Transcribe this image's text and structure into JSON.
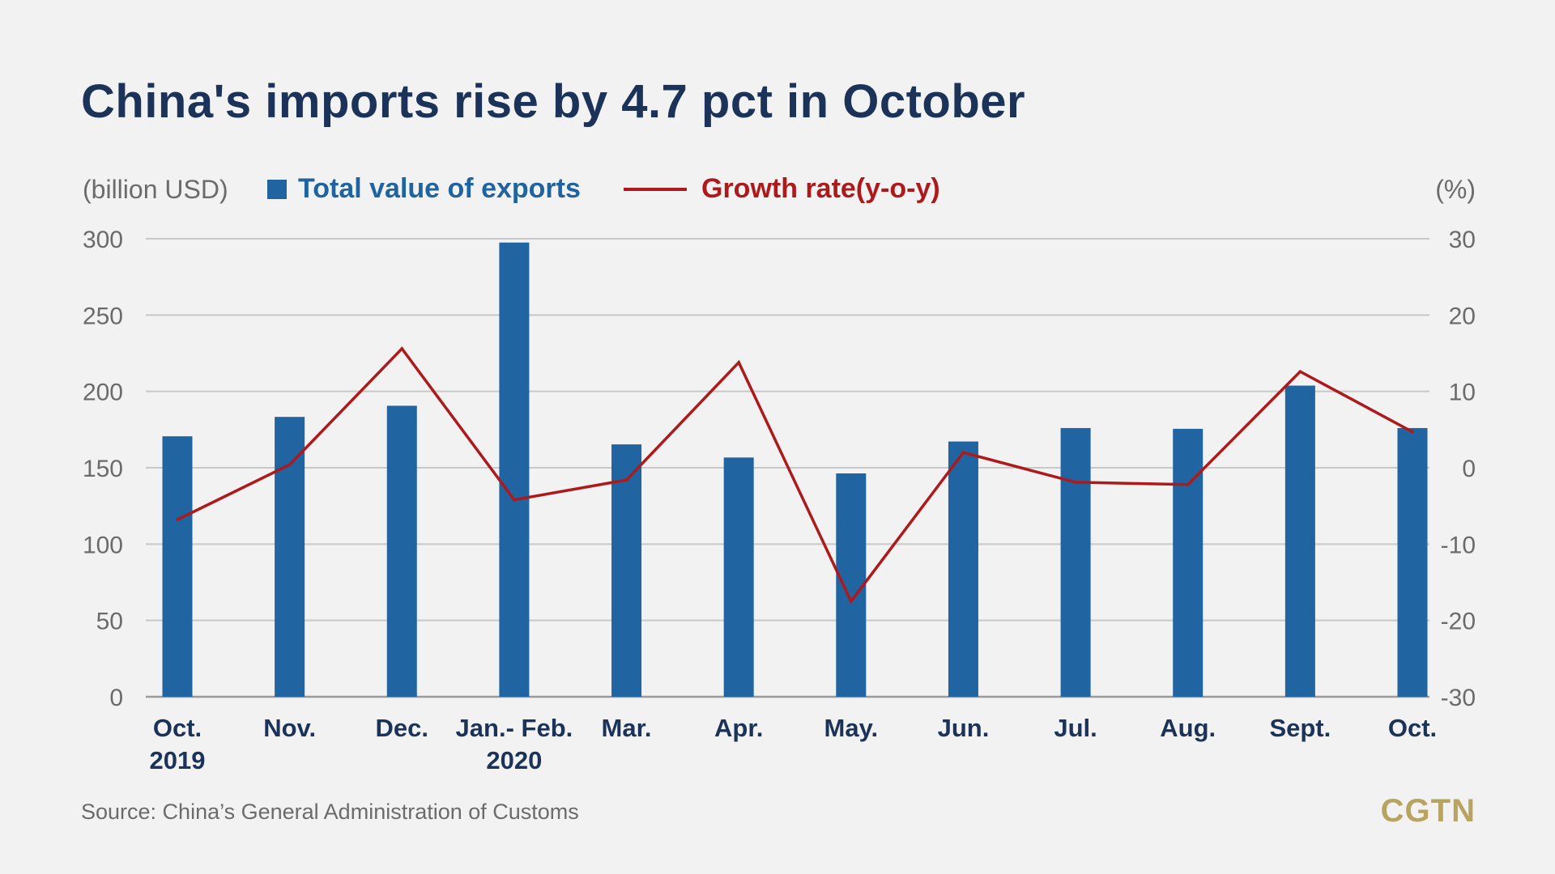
{
  "title": "China's imports rise by 4.7 pct in October",
  "source": "Source: China’s General Administration of Customs",
  "brand": "CGTN",
  "colors": {
    "background": "#f2f2f2",
    "bar": "#2064a1",
    "line": "#ad1a1c",
    "title": "#1b3358",
    "grid": "#c8c8c8",
    "brand": "#b9a45f"
  },
  "chart_data": {
    "type": "bar",
    "title": "China's imports rise by 4.7 pct in October",
    "ylabel_left": "(billion USD)",
    "ylabel_right": "(%)",
    "categories": [
      [
        "Oct.",
        "2019"
      ],
      [
        "Nov.",
        ""
      ],
      [
        "Dec.",
        ""
      ],
      [
        "Jan.- Feb.",
        "2020"
      ],
      [
        "Mar.",
        ""
      ],
      [
        "Apr.",
        ""
      ],
      [
        "May.",
        ""
      ],
      [
        "Jun.",
        ""
      ],
      [
        "Jul.",
        ""
      ],
      [
        "Aug.",
        ""
      ],
      [
        "Sept.",
        ""
      ],
      [
        "Oct.",
        ""
      ]
    ],
    "series": [
      {
        "name": "Total value of exports",
        "type": "bar",
        "axis": "left",
        "values": [
          170.6,
          183.3,
          190.6,
          297.5,
          165.3,
          156.7,
          146.3,
          167.2,
          176.0,
          175.5,
          203.8,
          176.0
        ]
      },
      {
        "name": "Growth rate(y-o-y)",
        "type": "line",
        "axis": "right",
        "values": [
          -6.8,
          0.4,
          15.6,
          -4.2,
          -1.6,
          13.8,
          -17.5,
          2.0,
          -1.9,
          -2.2,
          12.6,
          4.7
        ]
      }
    ],
    "y_left": {
      "min": 0,
      "max": 300,
      "ticks": [
        0,
        50,
        100,
        150,
        200,
        250,
        300
      ]
    },
    "y_right": {
      "min": -30,
      "max": 30,
      "ticks": [
        -30,
        -20,
        -10,
        0,
        10,
        20,
        30
      ]
    },
    "grid": true,
    "legend_position": "top-left"
  }
}
